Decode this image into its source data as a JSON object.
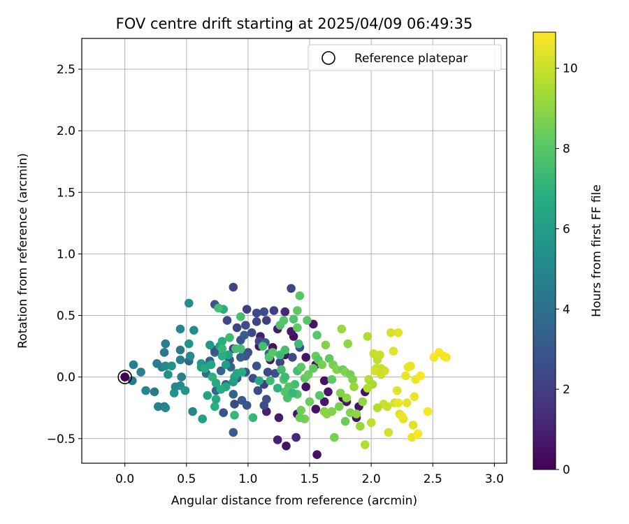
{
  "chart_data": {
    "type": "scatter",
    "title": "FOV centre drift starting at 2025/04/09 06:49:35",
    "xlabel": "Angular distance from reference (arcmin)",
    "ylabel": "Rotation from reference (arcmin)",
    "xlim": [
      -0.35,
      3.1
    ],
    "ylim": [
      -0.7,
      2.75
    ],
    "xticks": [
      0.0,
      0.5,
      1.0,
      1.5,
      2.0,
      2.5,
      3.0
    ],
    "xtick_labels": [
      "0.0",
      "0.5",
      "1.0",
      "1.5",
      "2.0",
      "2.5",
      "3.0"
    ],
    "yticks": [
      -0.5,
      0.0,
      0.5,
      1.0,
      1.5,
      2.0,
      2.5
    ],
    "ytick_labels": [
      "−0.5",
      "0.0",
      "0.5",
      "1.0",
      "1.5",
      "2.0",
      "2.5"
    ],
    "grid": true,
    "colormap": "viridis",
    "colorbar": {
      "label": "Hours from first FF file",
      "range": [
        0,
        10.9
      ],
      "ticks": [
        0,
        2,
        4,
        6,
        8,
        10
      ],
      "tick_labels": [
        "0",
        "2",
        "4",
        "6",
        "8",
        "10"
      ]
    },
    "legend": {
      "placement": "top-right",
      "entries": [
        "Reference platepar"
      ]
    },
    "reference_point": {
      "x": 0.0,
      "y": 0.0
    },
    "points": [
      [
        1.56,
        -0.63,
        0.4
      ],
      [
        1.31,
        -0.56,
        0.6
      ],
      [
        1.24,
        -0.51,
        1.0
      ],
      [
        1.39,
        -0.49,
        1.2
      ],
      [
        1.15,
        -0.28,
        1.0
      ],
      [
        1.25,
        -0.33,
        0.8
      ],
      [
        1.4,
        -0.3,
        0.6
      ],
      [
        1.55,
        -0.26,
        0.5
      ],
      [
        1.88,
        -0.33,
        0.6
      ],
      [
        1.77,
        -0.17,
        0.3
      ],
      [
        1.65,
        -0.12,
        0.6
      ],
      [
        1.47,
        -0.08,
        0.5
      ],
      [
        1.62,
        -0.03,
        0.5
      ],
      [
        1.95,
        -0.12,
        0.6
      ],
      [
        1.2,
        0.24,
        0.5
      ],
      [
        1.3,
        0.18,
        0.6
      ],
      [
        1.55,
        0.1,
        0.4
      ],
      [
        1.37,
        0.33,
        0.5
      ],
      [
        1.47,
        0.16,
        0.6
      ],
      [
        1.53,
        0.43,
        0.6
      ],
      [
        1.24,
        0.39,
        0.8
      ],
      [
        1.35,
        0.37,
        0.7
      ],
      [
        1.18,
        0.14,
        0.8
      ],
      [
        1.09,
        0.25,
        0.7
      ],
      [
        1.1,
        0.33,
        0.9
      ],
      [
        1.62,
        -0.2,
        0.7
      ],
      [
        1.8,
        -0.2,
        0.7
      ],
      [
        1.9,
        -0.24,
        0.6
      ],
      [
        1.3,
        0.53,
        1.2
      ],
      [
        0.88,
        0.73,
        2.2
      ],
      [
        1.35,
        0.72,
        2.3
      ],
      [
        0.73,
        0.59,
        3.0
      ],
      [
        0.99,
        0.55,
        2.0
      ],
      [
        1.13,
        0.53,
        2.6
      ],
      [
        1.07,
        0.52,
        2.4
      ],
      [
        1.21,
        0.54,
        2.0
      ],
      [
        0.83,
        0.46,
        2.4
      ],
      [
        0.91,
        0.4,
        2.2
      ],
      [
        0.98,
        0.42,
        2.5
      ],
      [
        1.03,
        0.36,
        2.4
      ],
      [
        1.15,
        0.46,
        2.0
      ],
      [
        1.09,
        0.29,
        2.5
      ],
      [
        0.88,
        0.23,
        2.0
      ],
      [
        0.94,
        0.3,
        2.8
      ],
      [
        1.0,
        0.2,
        2.6
      ],
      [
        0.98,
        0.17,
        3.0
      ],
      [
        1.07,
        0.09,
        2.8
      ],
      [
        1.16,
        0.04,
        2.4
      ],
      [
        1.04,
        -0.01,
        2.5
      ],
      [
        0.91,
        -0.01,
        3.2
      ],
      [
        0.98,
        0.04,
        2.8
      ],
      [
        1.08,
        -0.11,
        2.5
      ],
      [
        0.95,
        -0.19,
        3.0
      ],
      [
        0.89,
        -0.22,
        2.4
      ],
      [
        0.99,
        -0.23,
        3.0
      ],
      [
        1.15,
        -0.18,
        2.6
      ],
      [
        1.13,
        -0.23,
        2.5
      ],
      [
        0.82,
        -0.06,
        3.2
      ],
      [
        0.8,
        -0.29,
        2.8
      ],
      [
        0.88,
        -0.45,
        3.2
      ],
      [
        1.36,
        0.16,
        2.4
      ],
      [
        1.26,
        0.12,
        2.2
      ],
      [
        1.22,
        0.03,
        2.6
      ],
      [
        1.07,
        0.45,
        2.3
      ],
      [
        0.97,
        0.34,
        3.3
      ],
      [
        1.42,
        0.24,
        2.6
      ],
      [
        1.13,
        -0.06,
        2.0
      ],
      [
        0.78,
        0.05,
        3.4
      ],
      [
        0.69,
        0.13,
        3.4
      ],
      [
        0.73,
        0.2,
        3.6
      ],
      [
        0.86,
        0.08,
        3.6
      ],
      [
        0.66,
        0.03,
        3.8
      ],
      [
        0.52,
        0.13,
        3.5
      ],
      [
        0.73,
        0.22,
        2.8
      ],
      [
        0.85,
        0.14,
        2.9
      ],
      [
        0.94,
        0.16,
        3.2
      ],
      [
        1.14,
        0.28,
        3.3
      ],
      [
        1.17,
        0.19,
        3.5
      ],
      [
        0.88,
        -0.14,
        3.5
      ],
      [
        0.74,
        -0.11,
        3.7
      ],
      [
        0.0,
        0.0,
        4.4
      ],
      [
        0.07,
        0.1,
        4.6
      ],
      [
        0.06,
        -0.03,
        4.4
      ],
      [
        0.13,
        0.04,
        4.8
      ],
      [
        0.17,
        -0.11,
        5.0
      ],
      [
        0.24,
        -0.12,
        4.4
      ],
      [
        0.27,
        -0.24,
        4.8
      ],
      [
        0.32,
        -0.24,
        4.2
      ],
      [
        0.33,
        -0.25,
        5.0
      ],
      [
        0.3,
        0.08,
        4.8
      ],
      [
        0.26,
        0.11,
        4.6
      ],
      [
        0.32,
        0.2,
        4.4
      ],
      [
        0.33,
        0.27,
        4.6
      ],
      [
        0.33,
        0.09,
        5.2
      ],
      [
        0.38,
        0.09,
        5.4
      ],
      [
        0.35,
        0.02,
        5.4
      ],
      [
        0.4,
        -0.13,
        5.6
      ],
      [
        0.41,
        -0.08,
        5.0
      ],
      [
        0.45,
        -0.07,
        5.2
      ],
      [
        0.46,
        0.0,
        4.6
      ],
      [
        0.45,
        0.14,
        4.6
      ],
      [
        0.45,
        0.22,
        4.4
      ],
      [
        0.45,
        0.39,
        5.0
      ],
      [
        0.52,
        0.6,
        5.4
      ],
      [
        0.56,
        0.38,
        5.4
      ],
      [
        0.52,
        0.27,
        5.6
      ],
      [
        0.53,
        0.17,
        5.2
      ],
      [
        0.55,
        -0.28,
        5.0
      ],
      [
        0.49,
        -0.11,
        5.6
      ],
      [
        0.63,
        -0.34,
        6.0
      ],
      [
        0.67,
        -0.15,
        6.2
      ],
      [
        0.73,
        -0.24,
        6.8
      ],
      [
        0.74,
        -0.18,
        6.6
      ],
      [
        0.62,
        0.08,
        5.8
      ],
      [
        0.62,
        0.11,
        6.0
      ],
      [
        0.66,
        0.09,
        5.4
      ],
      [
        0.69,
        0.26,
        5.8
      ],
      [
        0.7,
        0.1,
        6.4
      ],
      [
        0.77,
        0.25,
        6.2
      ],
      [
        0.79,
        0.29,
        6.8
      ],
      [
        0.8,
        0.55,
        6.8
      ],
      [
        0.82,
        0.1,
        6.0
      ],
      [
        0.82,
        -0.08,
        6.5
      ],
      [
        0.74,
        -0.05,
        6.6
      ],
      [
        0.89,
        0.0,
        6.2
      ],
      [
        0.88,
        -0.04,
        6.0
      ],
      [
        0.91,
        0.03,
        6.4
      ],
      [
        0.95,
        0.04,
        6.6
      ],
      [
        0.94,
        0.49,
        7.6
      ],
      [
        0.9,
        0.23,
        7.5
      ],
      [
        0.89,
        -0.31,
        7.2
      ],
      [
        1.04,
        -0.33,
        7.2
      ],
      [
        1.09,
        -0.03,
        6.6
      ],
      [
        0.84,
        0.18,
        6.4
      ],
      [
        0.79,
        0.17,
        6.8
      ],
      [
        0.78,
        -0.1,
        6.8
      ],
      [
        0.65,
        0.07,
        6.6
      ],
      [
        0.71,
        0.0,
        6.9
      ],
      [
        1.12,
        0.25,
        7.6
      ],
      [
        1.17,
        0.16,
        7.8
      ],
      [
        1.2,
        0.2,
        8.0
      ],
      [
        1.26,
        0.18,
        7.4
      ],
      [
        1.3,
        0.22,
        7.6
      ],
      [
        1.27,
        0.06,
        7.6
      ],
      [
        1.29,
        -0.02,
        7.8
      ],
      [
        1.3,
        0.0,
        7.4
      ],
      [
        1.33,
        -0.08,
        7.9
      ],
      [
        1.3,
        -0.12,
        8.0
      ],
      [
        1.32,
        -0.17,
        7.7
      ],
      [
        1.38,
        -0.06,
        7.6
      ],
      [
        1.4,
        -0.14,
        7.8
      ],
      [
        1.4,
        0.05,
        7.6
      ],
      [
        1.43,
        0.08,
        8.0
      ],
      [
        1.46,
        -0.01,
        8.2
      ],
      [
        1.49,
        0.02,
        8.4
      ],
      [
        1.43,
        -0.27,
        8.5
      ],
      [
        1.46,
        -0.34,
        8.6
      ],
      [
        1.42,
        -0.33,
        8.4
      ],
      [
        1.5,
        -0.2,
        8.4
      ],
      [
        1.53,
        0.07,
        8.2
      ],
      [
        1.55,
        0.17,
        8.4
      ],
      [
        1.57,
        0.14,
        8.0
      ],
      [
        1.6,
        0.1,
        8.6
      ],
      [
        1.63,
        0.26,
        8.8
      ],
      [
        1.66,
        0.15,
        8.2
      ],
      [
        1.69,
        0.1,
        8.6
      ],
      [
        1.72,
        0.06,
        8.8
      ],
      [
        1.77,
        0.06,
        8.4
      ],
      [
        1.79,
        0.04,
        8.8
      ],
      [
        1.81,
        0.27,
        9.0
      ],
      [
        1.83,
        0.02,
        8.6
      ],
      [
        1.85,
        -0.02,
        8.8
      ],
      [
        1.76,
        0.39,
        9.2
      ],
      [
        1.62,
        -0.28,
        8.8
      ],
      [
        1.64,
        -0.3,
        8.9
      ],
      [
        1.68,
        -0.28,
        8.8
      ],
      [
        1.7,
        -0.49,
        8.6
      ],
      [
        1.74,
        -0.24,
        8.6
      ],
      [
        1.79,
        -0.36,
        8.4
      ],
      [
        1.83,
        -0.29,
        8.8
      ],
      [
        1.88,
        -0.3,
        9.0
      ],
      [
        1.91,
        -0.4,
        9.2
      ],
      [
        1.56,
        0.34,
        8.0
      ],
      [
        1.4,
        0.54,
        8.2
      ],
      [
        1.42,
        0.66,
        8.0
      ],
      [
        1.37,
        0.47,
        7.8
      ],
      [
        1.26,
        0.42,
        7.8
      ],
      [
        1.41,
        0.27,
        7.4
      ],
      [
        1.48,
        0.46,
        8.0
      ],
      [
        1.4,
        0.4,
        8.2
      ],
      [
        1.29,
        0.46,
        7.9
      ],
      [
        1.36,
        -0.13,
        7.2
      ],
      [
        1.24,
        -0.09,
        7.0
      ],
      [
        1.18,
        -0.03,
        7.4
      ],
      [
        0.79,
        0.23,
        7.2
      ],
      [
        0.85,
        0.32,
        7.4
      ],
      [
        0.76,
        0.56,
        7.6
      ],
      [
        0.94,
        0.23,
        7.6
      ],
      [
        1.58,
        -0.15,
        8.0
      ],
      [
        1.68,
        -0.02,
        8.2
      ],
      [
        1.75,
        -0.13,
        8.8
      ],
      [
        1.8,
        -0.17,
        9.0
      ],
      [
        1.86,
        -0.08,
        9.2
      ],
      [
        1.93,
        -0.2,
        9.0
      ],
      [
        1.97,
        0.33,
        9.6
      ],
      [
        1.98,
        -0.02,
        9.6
      ],
      [
        2.01,
        -0.06,
        9.4
      ],
      [
        2.02,
        0.19,
        10.0
      ],
      [
        2.04,
        0.07,
        10.0
      ],
      [
        2.05,
        0.14,
        9.8
      ],
      [
        2.07,
        0.18,
        10.0
      ],
      [
        2.08,
        0.02,
        10.0
      ],
      [
        2.1,
        -0.22,
        10.0
      ],
      [
        2.11,
        0.05,
        10.2
      ],
      [
        2.13,
        -0.24,
        10.0
      ],
      [
        2.14,
        -0.45,
        10.2
      ],
      [
        2.16,
        0.36,
        10.2
      ],
      [
        2.18,
        0.21,
        10.4
      ],
      [
        2.19,
        -0.21,
        10.2
      ],
      [
        2.21,
        -0.11,
        10.4
      ],
      [
        2.22,
        0.36,
        10.4
      ],
      [
        2.23,
        -0.3,
        10.4
      ],
      [
        2.26,
        -0.34,
        10.4
      ],
      [
        2.28,
        0.01,
        10.6
      ],
      [
        2.3,
        0.08,
        10.6
      ],
      [
        2.32,
        0.09,
        10.6
      ],
      [
        2.33,
        -0.49,
        10.6
      ],
      [
        2.34,
        -0.39,
        10.4
      ],
      [
        2.35,
        -0.16,
        10.6
      ],
      [
        2.36,
        -0.02,
        10.6
      ],
      [
        2.38,
        -0.46,
        10.8
      ],
      [
        2.4,
        0.01,
        10.8
      ],
      [
        2.46,
        -0.28,
        10.8
      ],
      [
        2.51,
        0.16,
        10.8
      ],
      [
        2.55,
        0.2,
        10.8
      ],
      [
        2.59,
        0.17,
        10.8
      ],
      [
        2.61,
        0.16,
        10.8
      ],
      [
        1.95,
        -0.55,
        9.6
      ],
      [
        2.0,
        -0.37,
        9.8
      ],
      [
        2.05,
        -0.25,
        9.6
      ],
      [
        1.97,
        -0.09,
        9.6
      ],
      [
        2.22,
        -0.21,
        10.6
      ],
      [
        2.25,
        -0.32,
        10.6
      ],
      [
        2.29,
        -0.21,
        10.5
      ],
      [
        2.08,
        0.07,
        10.0
      ],
      [
        2.03,
        0.05,
        10.2
      ]
    ]
  }
}
